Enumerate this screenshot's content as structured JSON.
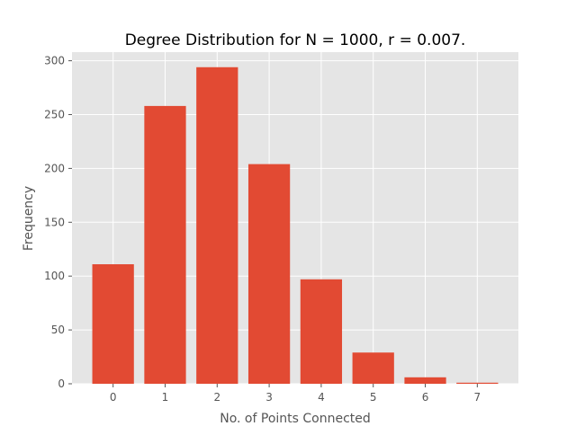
{
  "chart_data": {
    "type": "bar",
    "title": "Degree Distribution for N = 1000, r = 0.007.",
    "xlabel": "No. of Points Connected",
    "ylabel": "Frequency",
    "categories": [
      "0",
      "1",
      "2",
      "3",
      "4",
      "5",
      "6",
      "7"
    ],
    "values": [
      111,
      258,
      294,
      204,
      97,
      29,
      6,
      1
    ],
    "xlim": [
      -0.79,
      7.79
    ],
    "ylim": [
      0,
      308
    ],
    "yticks": [
      0,
      50,
      100,
      150,
      200,
      250,
      300
    ],
    "grid": true,
    "colors": {
      "bar": "#E24A33",
      "plot_background": "#E5E5E5",
      "grid": "#FFFFFF",
      "text": "#555555",
      "title": "#000000"
    }
  }
}
